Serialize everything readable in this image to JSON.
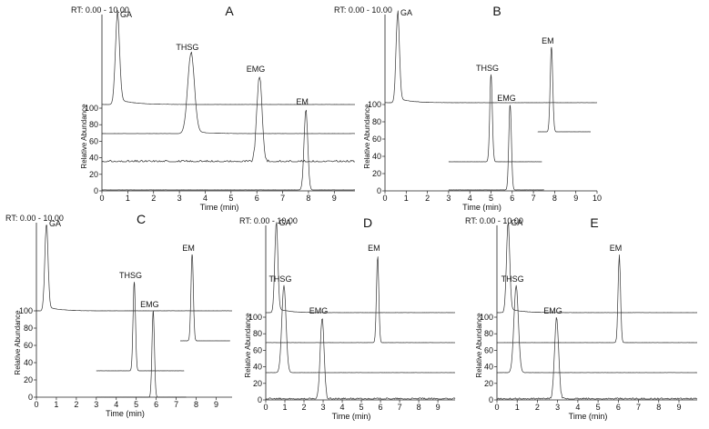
{
  "chart_data": [
    {
      "panel_label": "A",
      "type": "line",
      "rt_label": "RT: 0.00 - 10.00",
      "xlabel": "Time (min)",
      "ylabel": "Relative Abundance",
      "xlim": [
        0,
        9.8
      ],
      "xticks": [
        0,
        1,
        2,
        3,
        4,
        5,
        6,
        7,
        8,
        9
      ],
      "yticks": [
        0,
        20,
        40,
        60,
        80,
        100
      ],
      "traces": [
        {
          "peak_label": "GA",
          "peak_rt": 0.6,
          "peak_width": 0.08,
          "height": 100,
          "tail": 6,
          "noise": 0.3
        },
        {
          "peak_label": "THSG",
          "peak_rt": 3.45,
          "peak_width": 0.13,
          "height": 100,
          "tail": 3,
          "noise": 0.3
        },
        {
          "peak_label": "EMG",
          "peak_rt": 6.1,
          "peak_width": 0.1,
          "height": 100,
          "tail": 0,
          "noise": 4
        },
        {
          "peak_label": "EM",
          "peak_rt": 7.9,
          "peak_width": 0.07,
          "height": 100,
          "tail": 0,
          "noise": 0.3
        }
      ]
    },
    {
      "panel_label": "B",
      "type": "line",
      "rt_label": "RT: 0.00 - 10.00",
      "xlabel": "Time (min)",
      "ylabel": "Relative Abundance",
      "xlim": [
        0,
        10
      ],
      "xticks": [
        0,
        1,
        2,
        3,
        4,
        5,
        6,
        7,
        8,
        9,
        10
      ],
      "yticks": [
        0,
        20,
        40,
        60,
        80,
        100
      ],
      "traces": [
        {
          "peak_label": "GA",
          "peak_rt": 0.6,
          "peak_width": 0.08,
          "height": 100,
          "tail": 5,
          "noise": 0.3
        },
        {
          "peak_label": "THSG",
          "peak_rt": 5.0,
          "peak_width": 0.06,
          "height": 100,
          "tail": 0,
          "noise": 0.3
        },
        {
          "peak_label": "EMG",
          "peak_rt": 5.9,
          "peak_width": 0.06,
          "height": 100,
          "tail": 0,
          "noise": 0.3
        },
        {
          "peak_label": "EM",
          "peak_rt": 7.85,
          "peak_width": 0.06,
          "height": 100,
          "tail": 0,
          "noise": 0.3
        }
      ]
    },
    {
      "panel_label": "C",
      "type": "line",
      "rt_label": "RT: 0.00 - 10.00",
      "xlabel": "Time (min)",
      "ylabel": "Relative Abundance",
      "xlim": [
        0,
        9.8
      ],
      "xticks": [
        0,
        1,
        2,
        3,
        4,
        5,
        6,
        7,
        8,
        9
      ],
      "yticks": [
        0,
        20,
        40,
        60,
        80,
        100
      ],
      "traces": [
        {
          "peak_label": "GA",
          "peak_rt": 0.5,
          "peak_width": 0.08,
          "height": 100,
          "tail": 5,
          "noise": 0.3
        },
        {
          "peak_label": "THSG",
          "peak_rt": 4.9,
          "peak_width": 0.06,
          "height": 100,
          "tail": 0,
          "noise": 0.3
        },
        {
          "peak_label": "EMG",
          "peak_rt": 5.85,
          "peak_width": 0.06,
          "height": 100,
          "tail": 0,
          "noise": 0.3
        },
        {
          "peak_label": "EM",
          "peak_rt": 7.8,
          "peak_width": 0.06,
          "height": 100,
          "tail": 0,
          "noise": 0.3
        }
      ]
    },
    {
      "panel_label": "D",
      "type": "line",
      "rt_label": "RT: 0.00 - 10.00",
      "xlabel": "Time (min)",
      "ylabel": "Relative Abundance",
      "xlim": [
        0,
        9.9
      ],
      "xticks": [
        0,
        1,
        2,
        3,
        4,
        5,
        6,
        7,
        8,
        9
      ],
      "yticks": [
        0,
        20,
        40,
        60,
        80,
        100
      ],
      "traces": [
        {
          "peak_label": "GA",
          "peak_rt": 0.55,
          "peak_width": 0.08,
          "height": 100,
          "tail": 5,
          "noise": 0.3
        },
        {
          "peak_label": "THSG",
          "peak_rt": 0.95,
          "peak_width": 0.11,
          "height": 100,
          "tail": 0,
          "noise": 0.3
        },
        {
          "peak_label": "EMG",
          "peak_rt": 2.95,
          "peak_width": 0.1,
          "height": 100,
          "tail": 0,
          "noise": 3
        },
        {
          "peak_label": "EM",
          "peak_rt": 5.85,
          "peak_width": 0.06,
          "height": 100,
          "tail": 0,
          "noise": 0.3
        }
      ]
    },
    {
      "panel_label": "E",
      "type": "line",
      "rt_label": "RT: 0.00 - 10.00",
      "xlabel": "Time (min)",
      "ylabel": "Relative Abundance",
      "xlim": [
        0,
        9.9
      ],
      "xticks": [
        0,
        1,
        2,
        3,
        4,
        5,
        6,
        7,
        8,
        9
      ],
      "yticks": [
        0,
        20,
        40,
        60,
        80,
        100
      ],
      "traces": [
        {
          "peak_label": "GA",
          "peak_rt": 0.55,
          "peak_width": 0.08,
          "height": 100,
          "tail": 5,
          "noise": 0.3
        },
        {
          "peak_label": "THSG",
          "peak_rt": 0.95,
          "peak_width": 0.11,
          "height": 100,
          "tail": 0,
          "noise": 0.3
        },
        {
          "peak_label": "EMG",
          "peak_rt": 2.95,
          "peak_width": 0.1,
          "height": 100,
          "tail": 0,
          "noise": 3
        },
        {
          "peak_label": "EM",
          "peak_rt": 6.05,
          "peak_width": 0.06,
          "height": 100,
          "tail": 0,
          "noise": 0.3
        }
      ]
    }
  ]
}
